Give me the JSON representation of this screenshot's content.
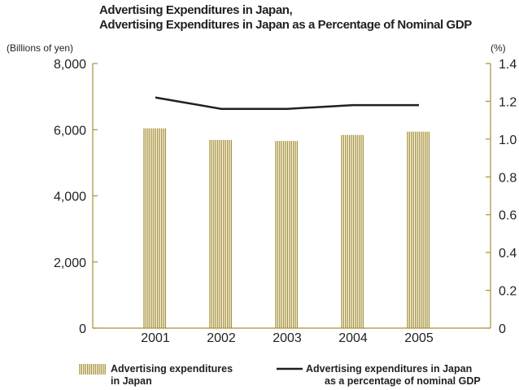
{
  "titles": {
    "line1": "Advertising Expenditures in Japan,",
    "line2": "Advertising Expenditures in Japan as a Percentage of Nominal GDP"
  },
  "units": {
    "left": "(Billions of yen)",
    "right": "(%)"
  },
  "colors": {
    "bar": "#a8913a",
    "axis": "#a8913a",
    "line": "#231f20",
    "text": "#231f20"
  },
  "legend": {
    "bar_line1": "Advertising expenditures",
    "bar_line2": "in Japan",
    "line_line1": "Advertising expenditures in Japan",
    "line_line2": "as a percentage of nominal GDP"
  },
  "chart_data": {
    "type": "bar",
    "categories": [
      "2001",
      "2002",
      "2003",
      "2004",
      "2005"
    ],
    "series": [
      {
        "name": "Advertising expenditures in Japan",
        "type": "bar",
        "axis": "left",
        "values": [
          6040,
          5690,
          5660,
          5840,
          5940
        ]
      },
      {
        "name": "Advertising expenditures in Japan as a percentage of nominal GDP",
        "type": "line",
        "axis": "right",
        "values": [
          1.22,
          1.16,
          1.16,
          1.18,
          1.18
        ]
      }
    ],
    "y_left": {
      "min": 0,
      "max": 8000,
      "ticks": [
        "0",
        "2,000",
        "4,000",
        "6,000",
        "8,000"
      ],
      "tick_values": [
        0,
        2000,
        4000,
        6000,
        8000
      ]
    },
    "y_right": {
      "min": 0,
      "max": 1.4,
      "ticks": [
        "0",
        "0.2",
        "0.4",
        "0.6",
        "0.8",
        "1.0",
        "1.2",
        "1.4"
      ],
      "tick_values": [
        0,
        0.2,
        0.4,
        0.6,
        0.8,
        1.0,
        1.2,
        1.4
      ]
    },
    "legend_position": "bottom",
    "grid": false
  }
}
